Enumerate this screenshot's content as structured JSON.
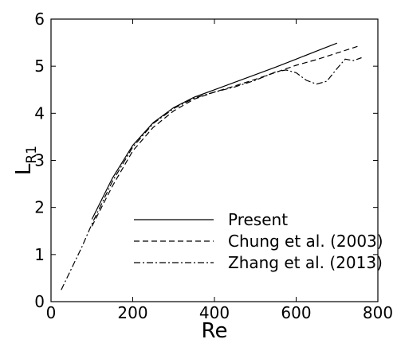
{
  "chart_data": {
    "type": "line",
    "xlabel": "Re",
    "ylabel_main": "L",
    "ylabel_sub": "R1",
    "xlim": [
      0,
      800
    ],
    "ylim": [
      0,
      6
    ],
    "xticks": [
      0,
      200,
      400,
      600,
      800
    ],
    "yticks": [
      0,
      1,
      2,
      3,
      4,
      5,
      6
    ],
    "grid": false,
    "legend_position": "bottom-right",
    "series": [
      {
        "name": "Present",
        "style": "solid",
        "x": [
          100,
          150,
          200,
          250,
          300,
          350,
          400,
          450,
          500,
          550,
          600,
          650,
          700
        ],
        "y": [
          1.75,
          2.62,
          3.32,
          3.8,
          4.12,
          4.34,
          4.5,
          4.66,
          4.82,
          4.98,
          5.15,
          5.32,
          5.49
        ]
      },
      {
        "name": "Chung et al. (2003)",
        "style": "dashed",
        "x": [
          100,
          150,
          200,
          250,
          300,
          350,
          400,
          450,
          500,
          550,
          600,
          650,
          700,
          750
        ],
        "y": [
          1.6,
          2.45,
          3.2,
          3.7,
          4.05,
          4.3,
          4.45,
          4.58,
          4.72,
          4.87,
          5.02,
          5.14,
          5.28,
          5.42
        ]
      },
      {
        "name": "Zhang et al. (2013)",
        "style": "dashdot",
        "x": [
          25,
          50,
          75,
          100,
          150,
          200,
          250,
          300,
          350,
          400,
          450,
          500,
          550,
          575,
          600,
          625,
          650,
          675,
          700,
          720,
          740,
          760
        ],
        "y": [
          0.25,
          0.7,
          1.15,
          1.65,
          2.55,
          3.28,
          3.78,
          4.1,
          4.32,
          4.45,
          4.56,
          4.7,
          4.88,
          4.92,
          4.86,
          4.7,
          4.62,
          4.68,
          4.95,
          5.15,
          5.12,
          5.18
        ]
      }
    ]
  }
}
